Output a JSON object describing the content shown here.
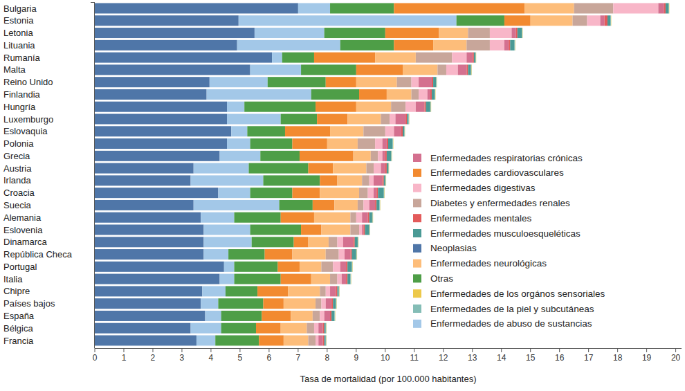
{
  "chart_data": {
    "type": "bar",
    "orientation": "horizontal",
    "stacked": true,
    "grid": false,
    "legend": "right",
    "xlabel": "Tasa de mortalidad (por 100.000 habitantes)",
    "xlim": [
      0,
      20.2
    ],
    "xticks": [
      0,
      1,
      2,
      3,
      4,
      5,
      6,
      7,
      8,
      9,
      10,
      11,
      12,
      13,
      14,
      15,
      16,
      17,
      18,
      19,
      20
    ],
    "categories": [
      "Bulgaria",
      "Estonia",
      "Letonia",
      "Lituania",
      "Rumanía",
      "Malta",
      "Reino Unido",
      "Finlandia",
      "Hungría",
      "Luxemburgo",
      "Eslovaquia",
      "Polonia",
      "Grecia",
      "Austria",
      "Irlanda",
      "Croacia",
      "Suecia",
      "Alemania",
      "Eslovenia",
      "Dinamarca",
      "República Checa",
      "Portugal",
      "Italia",
      "Chipre",
      "Países bajos",
      "España",
      "Bélgica",
      "Francia"
    ],
    "series": [
      {
        "name": "Enfermedades respiratorias crónicas",
        "color": "#d4708f",
        "values": [
          0.2,
          0.15,
          0.15,
          0.15,
          0.2,
          0.3,
          0.45,
          0.1,
          0.3,
          0.35,
          0.25,
          0.15,
          0.1,
          0.15,
          0.3,
          0.1,
          0.2,
          0.2,
          0.05,
          0.35,
          0.2,
          0.2,
          0.15,
          0.2,
          0.2,
          0.2,
          0.15,
          0.15
        ]
      },
      {
        "name": "Enfermedades cardiovasculares",
        "color": "#f28a30",
        "values": [
          4.5,
          0.9,
          1.85,
          1.35,
          2.1,
          1.6,
          1.05,
          0.95,
          1.4,
          1.05,
          1.55,
          1.2,
          1.85,
          0.85,
          0.6,
          0.95,
          0.75,
          1.15,
          0.7,
          0.5,
          0.95,
          0.75,
          1.05,
          1.05,
          0.7,
          1.0,
          0.85,
          0.85
        ]
      },
      {
        "name": "Enfermedades digestivas",
        "color": "#f8b6c8",
        "values": [
          1.55,
          0.45,
          0.75,
          0.5,
          0.5,
          0.4,
          0.25,
          0.3,
          0.35,
          0.2,
          0.3,
          0.25,
          0.15,
          0.25,
          0.15,
          0.2,
          0.2,
          0.2,
          0.1,
          0.2,
          0.2,
          0.25,
          0.15,
          0.15,
          0.15,
          0.15,
          0.15,
          0.1
        ]
      },
      {
        "name": "Diabetes y enfermedades renales",
        "color": "#c8a69a",
        "values": [
          1.35,
          0.5,
          0.75,
          0.8,
          1.25,
          0.3,
          0.5,
          0.25,
          0.5,
          0.3,
          0.75,
          0.6,
          0.25,
          0.25,
          0.25,
          0.3,
          0.2,
          0.2,
          0.3,
          0.3,
          0.45,
          0.4,
          0.25,
          0.2,
          0.2,
          0.25,
          0.25,
          0.25
        ]
      },
      {
        "name": "Enfermedades mentales",
        "color": "#e35b5b",
        "values": [
          0.05,
          0.1,
          0.05,
          0.05,
          0.05,
          0.05,
          0.05,
          0.05,
          0.05,
          0.05,
          0.05,
          0.05,
          0.05,
          0.05,
          0.05,
          0.05,
          0.05,
          0.05,
          0.05,
          0.05,
          0.05,
          0.05,
          0.05,
          0.05,
          0.05,
          0.05,
          0.05,
          0.05
        ]
      },
      {
        "name": "Enfermedades musculoesqueléticas",
        "color": "#4a9a95",
        "values": [
          0.1,
          0.1,
          0.15,
          0.15,
          0.05,
          0.1,
          0.1,
          0.1,
          0.15,
          0.05,
          0.05,
          0.15,
          0.15,
          0.05,
          0.05,
          0.2,
          0.1,
          0.1,
          0.15,
          0.1,
          0.15,
          0.15,
          0.1,
          0.05,
          0.1,
          0.1,
          0.05,
          0.05
        ]
      },
      {
        "name": "Neoplasias",
        "color": "#4f76a8",
        "values": [
          7.0,
          4.95,
          5.5,
          4.9,
          6.1,
          5.35,
          3.95,
          3.85,
          4.55,
          4.55,
          4.7,
          4.55,
          4.3,
          3.4,
          3.3,
          4.25,
          3.4,
          3.65,
          3.75,
          3.75,
          3.75,
          4.45,
          4.3,
          3.7,
          3.65,
          3.8,
          3.3,
          3.5
        ]
      },
      {
        "name": "Enfermedades neurológicas",
        "color": "#fdbd7a",
        "values": [
          1.7,
          1.45,
          1.0,
          1.15,
          1.4,
          1.2,
          1.4,
          0.85,
          1.2,
          1.15,
          1.15,
          1.05,
          0.6,
          1.15,
          0.85,
          1.35,
          0.8,
          1.25,
          1.0,
          0.7,
          1.15,
          0.75,
          0.65,
          1.1,
          1.1,
          0.75,
          0.9,
          0.85
        ]
      },
      {
        "name": "Otras",
        "color": "#4e9e47",
        "values": [
          2.2,
          1.65,
          2.1,
          1.85,
          1.1,
          1.9,
          2.0,
          1.65,
          2.45,
          1.25,
          1.3,
          1.45,
          1.35,
          2.05,
          1.95,
          1.45,
          1.15,
          1.6,
          1.75,
          1.45,
          1.25,
          1.5,
          1.6,
          1.1,
          1.55,
          1.4,
          1.2,
          1.5
        ]
      },
      {
        "name": "Enfermedades de los orgános sensoriales",
        "color": "#edc94a",
        "values": [
          0.01,
          0.01,
          0.01,
          0.01,
          0.01,
          0.01,
          0.01,
          0.01,
          0.01,
          0.01,
          0.01,
          0.01,
          0.01,
          0.01,
          0.01,
          0.01,
          0.01,
          0.01,
          0.01,
          0.01,
          0.01,
          0.01,
          0.01,
          0.01,
          0.01,
          0.01,
          0.01,
          0.01
        ]
      },
      {
        "name": "Enfermedades de la piel y subcutáneas",
        "color": "#84bdb6",
        "values": [
          0.02,
          0.02,
          0.02,
          0.02,
          0.02,
          0.02,
          0.02,
          0.02,
          0.02,
          0.02,
          0.02,
          0.02,
          0.02,
          0.02,
          0.02,
          0.02,
          0.02,
          0.02,
          0.02,
          0.02,
          0.02,
          0.02,
          0.02,
          0.02,
          0.02,
          0.02,
          0.02,
          0.02
        ]
      },
      {
        "name": "Enfermedades de abuso de sustancias",
        "color": "#a3c8e8",
        "values": [
          1.1,
          7.5,
          2.4,
          3.55,
          0.35,
          1.75,
          2.0,
          3.6,
          0.6,
          1.85,
          0.55,
          0.8,
          1.4,
          1.9,
          2.5,
          1.1,
          2.95,
          1.15,
          1.6,
          1.65,
          0.85,
          0.35,
          0.5,
          0.8,
          0.6,
          0.55,
          1.05,
          0.65
        ]
      }
    ]
  }
}
